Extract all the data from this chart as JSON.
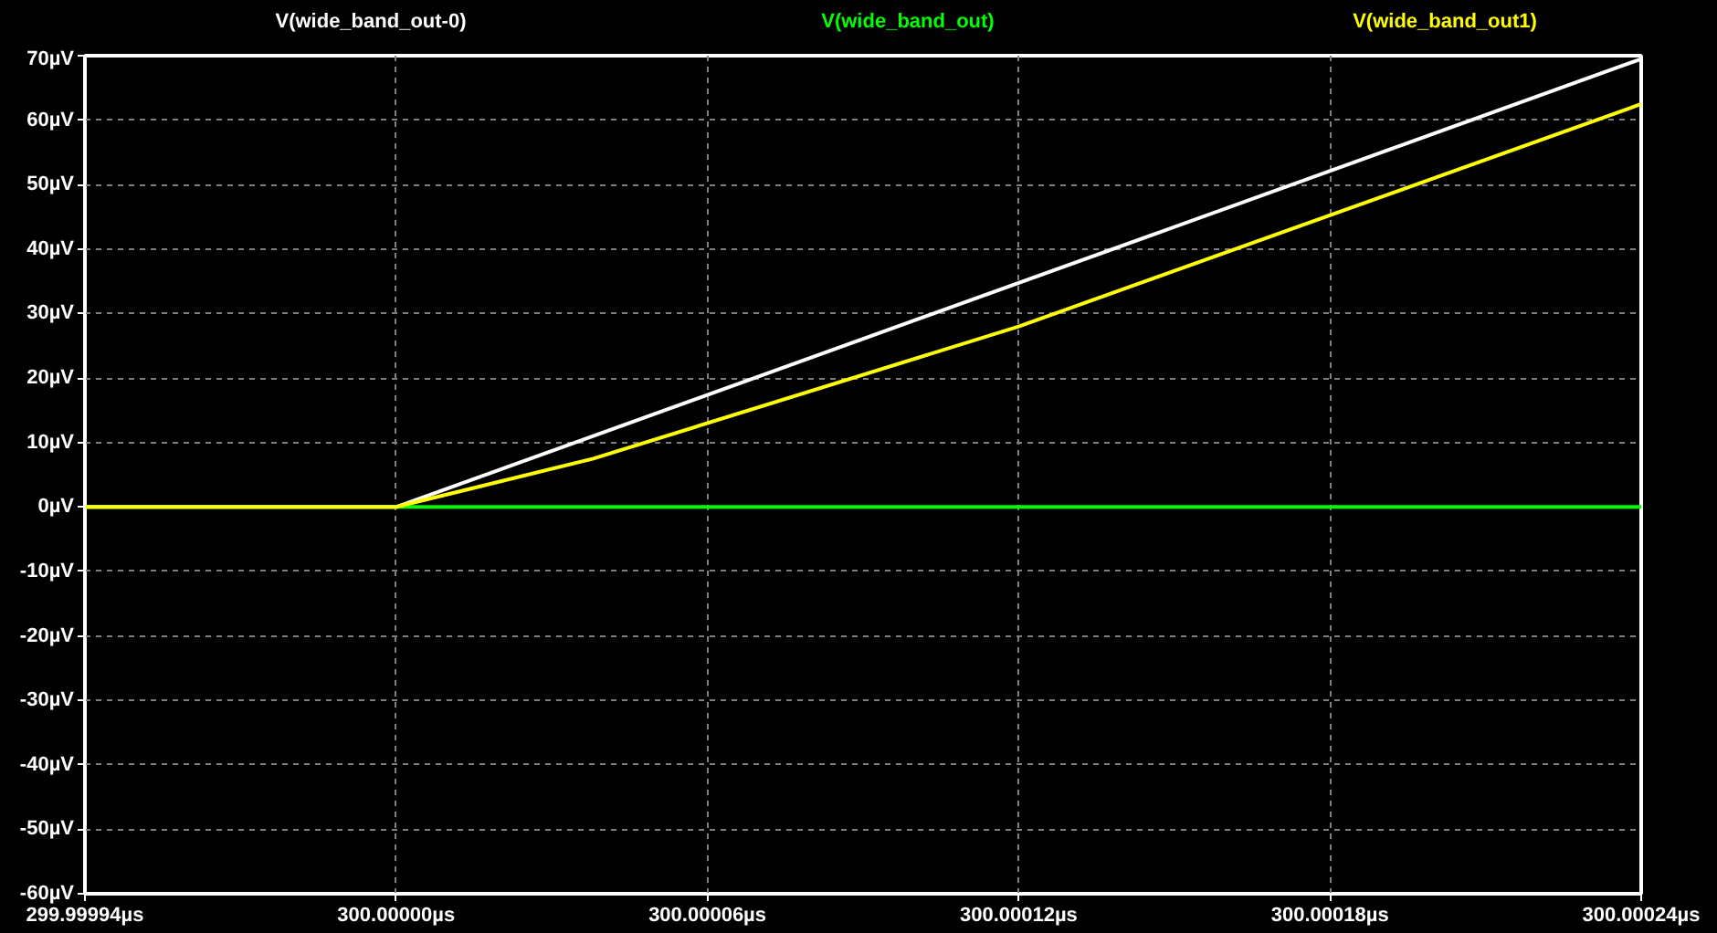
{
  "chart_data": {
    "type": "line",
    "xlim": [
      299.99994,
      300.00024
    ],
    "xticks": [
      {
        "value": 299.99994,
        "label": "299.99994µs"
      },
      {
        "value": 300.0,
        "label": "300.00000µs"
      },
      {
        "value": 300.00006,
        "label": "300.00006µs"
      },
      {
        "value": 300.00012,
        "label": "300.00012µs"
      },
      {
        "value": 300.00018,
        "label": "300.00018µs"
      },
      {
        "value": 300.00024,
        "label": "300.00024µs"
      }
    ],
    "ylim": [
      -60,
      70
    ],
    "yticks": [
      {
        "value": -60,
        "label": "-60µV"
      },
      {
        "value": -50,
        "label": "-50µV"
      },
      {
        "value": -40,
        "label": "-40µV"
      },
      {
        "value": -30,
        "label": "-30µV"
      },
      {
        "value": -20,
        "label": "-20µV"
      },
      {
        "value": -10,
        "label": "-10µV"
      },
      {
        "value": 0,
        "label": "0µV"
      },
      {
        "value": 10,
        "label": "10µV"
      },
      {
        "value": 20,
        "label": "20µV"
      },
      {
        "value": 30,
        "label": "30µV"
      },
      {
        "value": 40,
        "label": "40µV"
      },
      {
        "value": 50,
        "label": "50µV"
      },
      {
        "value": 60,
        "label": "60µV"
      },
      {
        "value": 70,
        "label": "70µV"
      }
    ],
    "grid": true,
    "line_style": "solid",
    "series": [
      {
        "name": "V(wide_band_out-0)",
        "color": "#ffffff",
        "x": [
          299.99994,
          300.0,
          300.00024
        ],
        "values": [
          0,
          0,
          69.5
        ]
      },
      {
        "name": "V(wide_band_out)",
        "color": "#00ff00",
        "x": [
          299.99994,
          300.00024
        ],
        "values": [
          0,
          0
        ]
      },
      {
        "name": "V(wide_band_out1)",
        "color": "#ffff00",
        "x": [
          299.99994,
          300.0,
          300.000038,
          300.00012,
          300.00024
        ],
        "values": [
          0,
          0,
          7.5,
          28,
          62.5
        ]
      }
    ]
  }
}
